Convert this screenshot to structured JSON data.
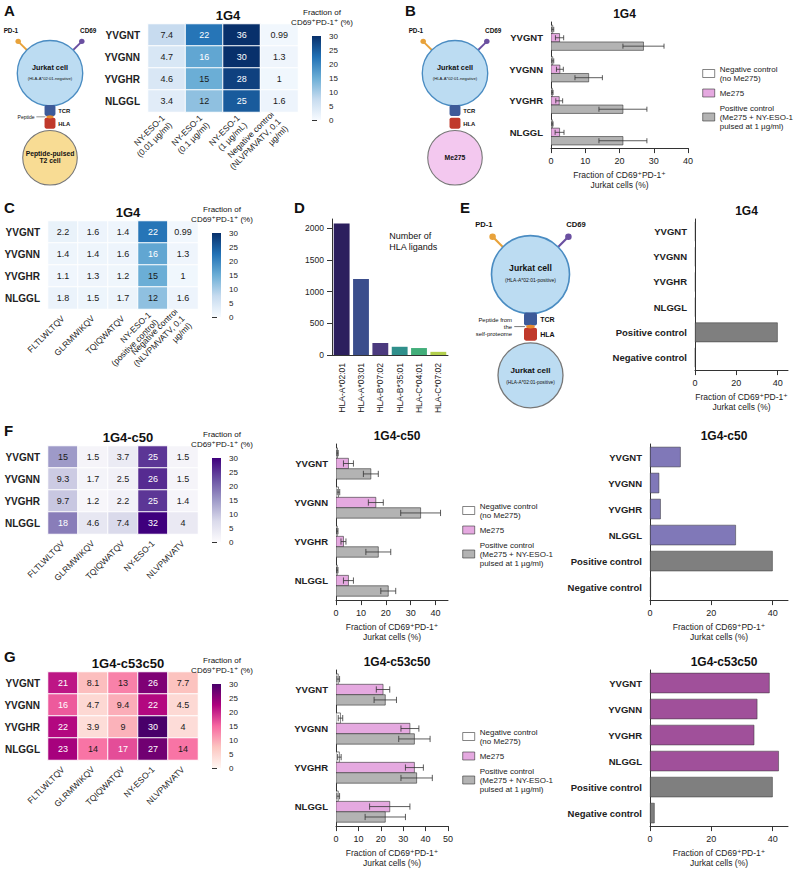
{
  "chart_data": [
    {
      "panel": "A",
      "type": "heatmap",
      "title": "1G4",
      "rows": [
        "YVGNT",
        "YVGNN",
        "YVGHR",
        "NLGGL"
      ],
      "columns": [
        "NY-ESO-1 (0.01 µg/ml)",
        "NY-ESO-1 (0.1 µg/ml)",
        "NY-ESO-1 (1 µg/mL)",
        "Negative control (NLVPMVATV, 0.1 µg/ml)"
      ],
      "cells": [
        [
          7.4,
          22,
          36,
          0.99
        ],
        [
          4.7,
          16,
          30,
          1.3
        ],
        [
          4.6,
          15,
          28,
          1
        ],
        [
          3.4,
          12,
          25,
          1.6
        ]
      ],
      "colors": [
        "#f7fbff",
        "#c6dbef",
        "#6baed6",
        "#2171b5",
        "#08306b"
      ],
      "data_labels": true,
      "colorbar": {
        "title": "Fraction of CD69⁺PD-1⁺ (%)",
        "range": [
          0,
          30
        ],
        "ticks": [
          0,
          5,
          10,
          15,
          20,
          25,
          30
        ]
      }
    },
    {
      "panel": "B",
      "type": "bar",
      "title": "1G4",
      "orientation": "horizontal",
      "categories": [
        "YVGNT",
        "YVGNN",
        "YVGHR",
        "NLGGL"
      ],
      "series": [
        {
          "name": "Negative control (no Me275)",
          "color": "#ffffff",
          "values": [
            0.5,
            0.5,
            0.4,
            0.4
          ],
          "errors": [
            0.3,
            0.3,
            0.2,
            0.2
          ]
        },
        {
          "name": "Me275",
          "color": "#e5a9e0",
          "values": [
            2.5,
            2.6,
            2.4,
            2.5
          ],
          "errors": [
            1.2,
            1.0,
            1.0,
            1.3
          ]
        },
        {
          "name": "Positive control (Me275 + NY-ESO-1 pulsed at 1 µg/ml)",
          "color": "#b3b3b3",
          "values": [
            27,
            11,
            21,
            21
          ],
          "errors": [
            6,
            4,
            7,
            7
          ]
        }
      ],
      "xlim": [
        0,
        40
      ],
      "xticks": [
        0,
        10,
        20,
        30,
        40
      ],
      "xlabel": "Fraction of CD69⁺PD-1⁺ Jurkat cells (%)",
      "legend": "right"
    },
    {
      "panel": "C",
      "type": "heatmap",
      "title": "1G4",
      "rows": [
        "YVGNT",
        "YVGNN",
        "YVGHR",
        "NLGGL"
      ],
      "columns": [
        "FLTLWLTQV",
        "GLRMWIKQV",
        "TQIQWATQV",
        "NY-ESO-1 (positive control)",
        "Negative control (NLVPMVATV, 0.1 µg/ml)"
      ],
      "cells": [
        [
          2.2,
          1.6,
          1.4,
          22,
          0.99
        ],
        [
          1.4,
          1.4,
          1.6,
          16,
          1.3
        ],
        [
          1.1,
          1.3,
          1.2,
          15,
          1
        ],
        [
          1.8,
          1.5,
          1.7,
          12,
          1.6
        ]
      ],
      "colors": [
        "#f7fbff",
        "#c6dbef",
        "#6baed6",
        "#2171b5",
        "#08306b"
      ],
      "data_labels": true,
      "colorbar": {
        "title": "Fraction of CD69⁺PD-1⁺ (%)",
        "range": [
          0,
          30
        ],
        "ticks": [
          0,
          5,
          10,
          15,
          20,
          25,
          30
        ]
      }
    },
    {
      "panel": "D",
      "type": "bar",
      "annotation": "Number of HLA ligands",
      "categories": [
        "HLA-A*02:01",
        "HLA-A*03:01",
        "HLA-B*07:02",
        "HLA-B*35:01",
        "HLA-C*04:01",
        "HLA-C*07:02"
      ],
      "values": [
        2080,
        1200,
        190,
        130,
        110,
        50
      ],
      "colors": [
        "#2c1f5e",
        "#3b4e8c",
        "#4b3a7e",
        "#2f8f8b",
        "#42ae7a",
        "#b2cf4c"
      ],
      "ylim": [
        0,
        2150
      ],
      "yticks": [
        0,
        500,
        1000,
        1500,
        2000
      ]
    },
    {
      "panel": "E",
      "type": "bar",
      "title": "1G4",
      "orientation": "horizontal",
      "categories": [
        "YVGNT",
        "YVGNN",
        "YVGHR",
        "NLGGL",
        "Positive control",
        "Negative control"
      ],
      "values": [
        0.3,
        0.3,
        0.3,
        0.3,
        40,
        0.2
      ],
      "colors": [
        "#7f7f7f",
        "#7f7f7f",
        "#7f7f7f",
        "#7f7f7f",
        "#7f7f7f",
        "#7f7f7f"
      ],
      "xlim": [
        0,
        45
      ],
      "xticks": [
        0,
        20,
        40
      ],
      "xlabel": "Fraction of CD69⁺PD-1⁺ Jurkat cells (%)"
    },
    {
      "panel": "F",
      "type": "heatmap",
      "title": "1G4-c50",
      "rows": [
        "YVGNT",
        "YVGNN",
        "YVGHR",
        "NLGGL"
      ],
      "columns": [
        "FLTLWLTQV",
        "GLRMWIKQV",
        "TQIQWATQV",
        "NY-ESO-1",
        "NLVPMVATV"
      ],
      "cells": [
        [
          15,
          1.5,
          3.7,
          25,
          1.5
        ],
        [
          9.3,
          1.7,
          2.5,
          26,
          1.5
        ],
        [
          9.7,
          1.2,
          2.2,
          25,
          1.4
        ],
        [
          18,
          4.6,
          7.4,
          32,
          4
        ]
      ],
      "colors": [
        "#fcfbfd",
        "#dadaeb",
        "#9e9ac8",
        "#6a51a3",
        "#3f007d"
      ],
      "data_labels": true,
      "colorbar": {
        "title": "Fraction of CD69⁺PD-1⁺ (%)",
        "range": [
          0,
          30
        ],
        "ticks": [
          0,
          5,
          10,
          15,
          20,
          25,
          30
        ]
      }
    },
    {
      "type": "bar",
      "title": "1G4-c50",
      "orientation": "horizontal",
      "categories": [
        "YVGNT",
        "YVGNN",
        "YVGHR",
        "NLGGL"
      ],
      "series": [
        {
          "name": "Negative control (no Me275)",
          "color": "#ffffff",
          "values": [
            0.6,
            1.0,
            0.5,
            0.5
          ],
          "errors": [
            0.3,
            0.5,
            0.3,
            0.3
          ]
        },
        {
          "name": "Me275",
          "color": "#e5a9e0",
          "values": [
            5,
            16,
            3,
            5
          ],
          "errors": [
            2,
            3,
            1,
            2
          ]
        },
        {
          "name": "Positive control (Me275 + NY-ESO-1 pulsed at 1 µg/ml)",
          "color": "#b3b3b3",
          "values": [
            14,
            34,
            17,
            21
          ],
          "errors": [
            3,
            8,
            5,
            3
          ]
        }
      ],
      "xlim": [
        0,
        45
      ],
      "xticks": [
        0,
        10,
        20,
        30,
        40
      ],
      "xlabel": "Fraction of CD69⁺PD-1⁺ Jurkat cells (%)",
      "legend": "right"
    },
    {
      "type": "bar",
      "title": "1G4-c50",
      "orientation": "horizontal",
      "categories": [
        "YVGNT",
        "YVGNN",
        "YVGHR",
        "NLGGL",
        "Positive control",
        "Negative control"
      ],
      "values": [
        10,
        3,
        3.5,
        28,
        40,
        0.3
      ],
      "colors": [
        "#8078b8",
        "#8078b8",
        "#8078b8",
        "#8078b8",
        "#7f7f7f",
        "#7f7f7f"
      ],
      "xlim": [
        0,
        45
      ],
      "xticks": [
        0,
        20,
        40
      ],
      "xlabel": "Fraction of CD69⁺PD-1⁺ Jurkat cells (%)"
    },
    {
      "panel": "G",
      "type": "heatmap",
      "title": "1G4-c53c50",
      "rows": [
        "YVGNT",
        "YVGNN",
        "YVGHR",
        "NLGGL"
      ],
      "columns": [
        "FLTLWLTQV",
        "GLRMWIKQV",
        "TQIQWATQV",
        "NY-ESO-1",
        "NLVPMVATV"
      ],
      "cells": [
        [
          21,
          8.1,
          13,
          26,
          7.7
        ],
        [
          16,
          4.7,
          9.4,
          22,
          4.5
        ],
        [
          22,
          3.9,
          9,
          30,
          4
        ],
        [
          23,
          14,
          17,
          27,
          14
        ]
      ],
      "colors": [
        "#fff7f3",
        "#fcc5c0",
        "#f768a1",
        "#ae017e",
        "#49006a"
      ],
      "data_labels": true,
      "colorbar": {
        "title": "Fraction of CD69⁺PD-1⁺ (%)",
        "range": [
          0,
          30
        ],
        "ticks": [
          0,
          5,
          10,
          15,
          20,
          25,
          30
        ]
      }
    },
    {
      "type": "bar",
      "title": "1G4-c53c50",
      "orientation": "horizontal",
      "categories": [
        "YVGNT",
        "YVGNN",
        "YVGHR",
        "NLGGL"
      ],
      "series": [
        {
          "name": "Negative control (no Me275)",
          "color": "#ffffff",
          "values": [
            1,
            2,
            1.5,
            1
          ],
          "errors": [
            0.6,
            1,
            0.8,
            0.6
          ]
        },
        {
          "name": "Me275",
          "color": "#e5a9e0",
          "values": [
            21,
            33,
            35,
            24
          ],
          "errors": [
            3,
            4,
            4,
            9
          ]
        },
        {
          "name": "Positive control (Me275 + NY-ESO-1 pulsed at 1 µg/ml)",
          "color": "#b3b3b3",
          "values": [
            22,
            35,
            36,
            22
          ],
          "errors": [
            5,
            7,
            7,
            9
          ]
        }
      ],
      "xlim": [
        0,
        50
      ],
      "xticks": [
        0,
        10,
        20,
        30,
        40,
        50
      ],
      "xlabel": "Fraction of CD69⁺PD-1⁺ Jurkat cells (%)",
      "legend": "right"
    },
    {
      "type": "bar",
      "title": "1G4-c53c50",
      "orientation": "horizontal",
      "categories": [
        "YVGNT",
        "YVGNN",
        "YVGHR",
        "NLGGL",
        "Positive control",
        "Negative control"
      ],
      "values": [
        39,
        35,
        34,
        42,
        40,
        1.5
      ],
      "colors": [
        "#a0509a",
        "#a0509a",
        "#a0509a",
        "#a0509a",
        "#7f7f7f",
        "#7f7f7f"
      ],
      "xlim": [
        0,
        45
      ],
      "xticks": [
        0,
        20,
        40
      ],
      "xlabel": "Fraction of CD69⁺PD-1⁺ Jurkat cells (%)"
    }
  ],
  "diagrams": {
    "A": {
      "markers": [
        "PD-1",
        "CD69"
      ],
      "cell": "Jurkat cell",
      "cell_note": "(HLA-A*02:01-negative)",
      "receptor": "TCR",
      "ligand": "HLA",
      "peptide": "Peptide",
      "target": "Peptide-pulsed T2 cell",
      "color": "#f8dc94"
    },
    "B": {
      "markers": [
        "PD-1",
        "CD69"
      ],
      "cell": "Jurkat cell",
      "cell_note": "(HLA-A*02:01-negative)",
      "receptor": "TCR",
      "ligand": "HLA",
      "target": "Me275",
      "color": "#f3c8ef"
    },
    "E": {
      "markers": [
        "PD-1",
        "CD69"
      ],
      "cell": "Jurkat cell",
      "cell_note": "(HLA-A*02:01-positive)",
      "receptor": "TCR",
      "ligand": "HLA",
      "peptide": "Peptide from the self-proteome",
      "target": "Jurkat cell",
      "target_note": "(HLA-A*02:01-positive)",
      "color": "#bcdcf2"
    }
  }
}
